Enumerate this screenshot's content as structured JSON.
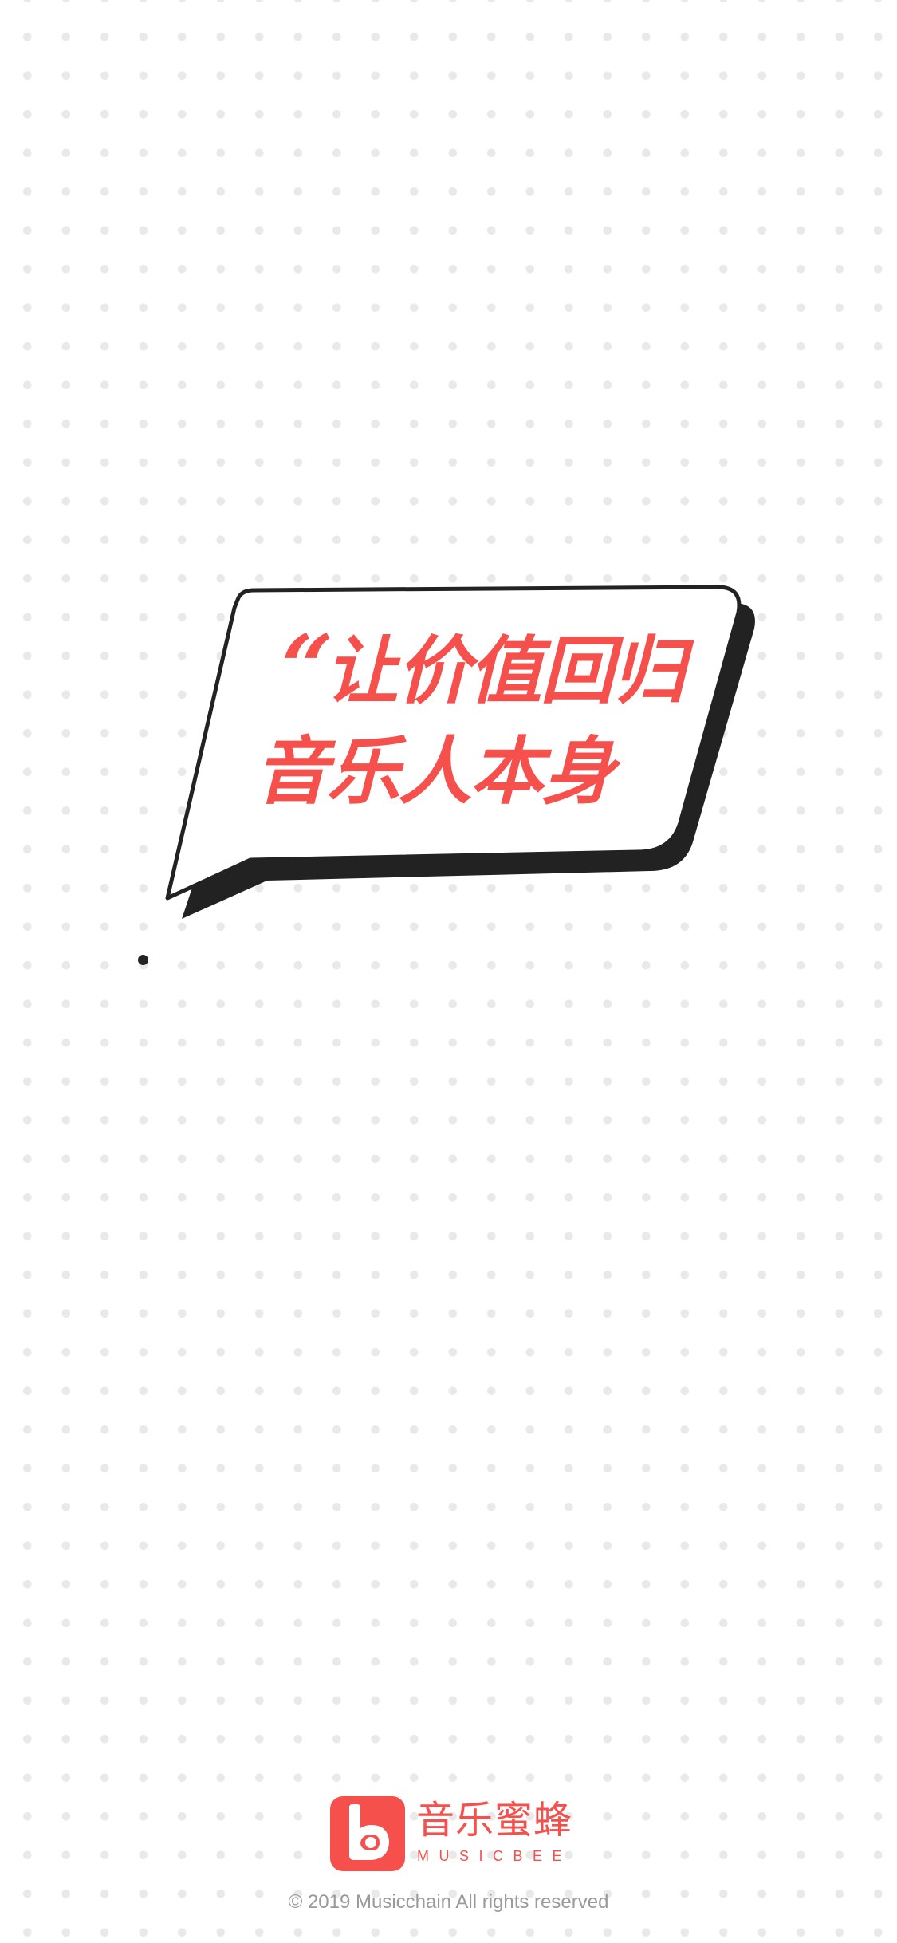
{
  "splash": {
    "slogan": {
      "quote_mark": "“",
      "line1": "让价值回归",
      "line2": "音乐人本身"
    },
    "pager": {
      "current_page": 1
    },
    "brand": {
      "name_cn": "音乐蜜蜂",
      "name_en": "MUSICBEE",
      "icon": "musicbee-logo-icon"
    },
    "copyright": "© 2019 Musicchain All rights reserved"
  },
  "colors": {
    "accent": "#f5504c",
    "outline": "#222222",
    "background": "#ffffff",
    "dot_pattern": "#e9e9e9",
    "footer_text": "#9a9a9a"
  }
}
